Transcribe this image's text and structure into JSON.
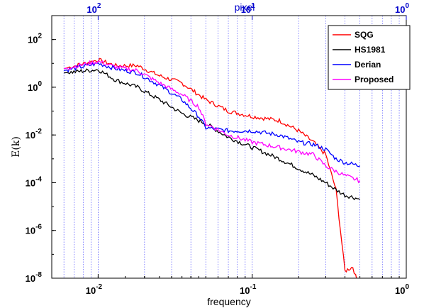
{
  "chart_data": {
    "type": "line",
    "xlabel": "frequency",
    "ylabel": "E(k)",
    "top_xlabel": "pixel",
    "xscale": "log",
    "yscale": "log",
    "xlim": [
      0.005,
      1
    ],
    "ylim": [
      1e-08,
      1000
    ],
    "grid": "vertical dotted lines at top-axis ticks",
    "legend": "top-right",
    "x_ticks": [
      {
        "value": 0.01,
        "base": "10",
        "exp": "-2"
      },
      {
        "value": 0.1,
        "base": "10",
        "exp": "-1"
      },
      {
        "value": 1,
        "base": "10",
        "exp": "0"
      }
    ],
    "y_ticks": [
      {
        "value": 100,
        "base": "10",
        "exp": "2"
      },
      {
        "value": 1,
        "base": "10",
        "exp": "0"
      },
      {
        "value": 0.01,
        "base": "10",
        "exp": "-2"
      },
      {
        "value": 0.0001,
        "base": "10",
        "exp": "-4"
      },
      {
        "value": 1e-06,
        "base": "10",
        "exp": "-6"
      },
      {
        "value": 1e-08,
        "base": "10",
        "exp": "-8"
      }
    ],
    "top_ticks": [
      {
        "value": 0.01,
        "base": "10",
        "exp": "2"
      },
      {
        "value": 0.1,
        "base": "10",
        "exp": "1"
      },
      {
        "value": 1,
        "base": "10",
        "exp": "0"
      }
    ],
    "series": [
      {
        "name": "SQG",
        "color": "#ff0000",
        "x": [
          0.006,
          0.01,
          0.013,
          0.018,
          0.025,
          0.035,
          0.05,
          0.07,
          0.1,
          0.15,
          0.2,
          0.25,
          0.3,
          0.35,
          0.4,
          0.45,
          0.5
        ],
        "y": [
          6,
          14,
          8,
          8,
          3,
          1.5,
          0.3,
          0.1,
          0.06,
          0.04,
          0.015,
          0.005,
          0.0015,
          5e-05,
          2e-08,
          3e-08,
          3e-09
        ]
      },
      {
        "name": "HS1981",
        "color": "#000000",
        "x": [
          0.006,
          0.01,
          0.013,
          0.018,
          0.025,
          0.035,
          0.05,
          0.07,
          0.1,
          0.15,
          0.2,
          0.25,
          0.3,
          0.35,
          0.4,
          0.45,
          0.5
        ],
        "y": [
          4,
          5.5,
          2,
          1,
          0.3,
          0.08,
          0.03,
          0.008,
          0.003,
          0.001,
          0.0004,
          0.0002,
          0.0001,
          5e-05,
          3e-05,
          2.5e-05,
          2e-05
        ]
      },
      {
        "name": "Derian",
        "color": "#0000ff",
        "x": [
          0.006,
          0.01,
          0.013,
          0.018,
          0.025,
          0.035,
          0.045,
          0.05,
          0.07,
          0.1,
          0.15,
          0.2,
          0.25,
          0.3,
          0.35,
          0.4,
          0.45,
          0.5
        ],
        "y": [
          5,
          10,
          6,
          4,
          1.2,
          0.3,
          0.06,
          0.02,
          0.015,
          0.015,
          0.01,
          0.005,
          0.004,
          0.0025,
          0.001,
          0.0007,
          0.0006,
          0.0005
        ]
      },
      {
        "name": "Proposed",
        "color": "#ff00ff",
        "x": [
          0.006,
          0.01,
          0.013,
          0.018,
          0.025,
          0.035,
          0.045,
          0.05,
          0.07,
          0.1,
          0.15,
          0.2,
          0.25,
          0.3,
          0.35,
          0.4,
          0.45,
          0.5
        ],
        "y": [
          6,
          12,
          7,
          5,
          1.5,
          0.5,
          0.15,
          0.03,
          0.01,
          0.005,
          0.003,
          0.002,
          0.0015,
          0.0005,
          0.0003,
          0.0002,
          0.00015,
          0.00012
        ]
      }
    ]
  }
}
